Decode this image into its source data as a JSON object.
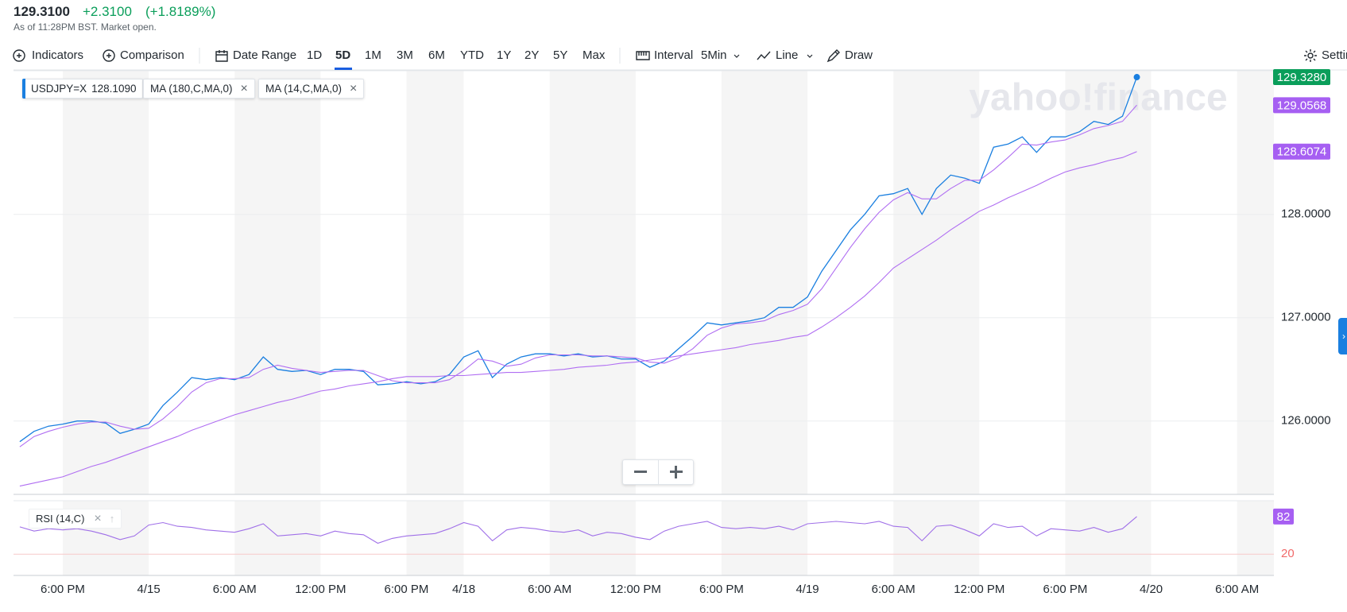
{
  "header": {
    "price": "129.3100",
    "change": "+2.3100",
    "change_pct": "(+1.8189%)",
    "status": "As of 11:28PM BST. Market open."
  },
  "toolbar": [
    {
      "label": "Indicators"
    },
    {
      "label": "Comparison"
    },
    {
      "label": "Date Range"
    },
    {
      "label": "1D"
    },
    {
      "label": "5D",
      "selected": true
    },
    {
      "label": "1M"
    },
    {
      "label": "3M"
    },
    {
      "label": "6M"
    },
    {
      "label": "YTD"
    },
    {
      "label": "1Y"
    },
    {
      "label": "2Y"
    },
    {
      "label": "5Y"
    },
    {
      "label": "Max"
    },
    {
      "label": "Interval"
    },
    {
      "label": "5Min"
    },
    {
      "label": "Line"
    },
    {
      "label": "Draw"
    },
    {
      "label": "Settings"
    }
  ],
  "chart_data": [
    {
      "type": "line",
      "watermark": "yahoo!finance",
      "legend_value": "128.1090",
      "x": [
        -3,
        -2,
        -1,
        0,
        1,
        2,
        3,
        4,
        5,
        6,
        7,
        8,
        9,
        10,
        11,
        12,
        13,
        14,
        15,
        16,
        17,
        18,
        19,
        20,
        21,
        22,
        23,
        24,
        25,
        26,
        27,
        28,
        29,
        30,
        31,
        32,
        33,
        34,
        35,
        36,
        37,
        38,
        39,
        40,
        41,
        42,
        43,
        44,
        45,
        46,
        47,
        48,
        49,
        50,
        51,
        52,
        53,
        54,
        55,
        56,
        57,
        58,
        59,
        60,
        61,
        62,
        63,
        64,
        65,
        66,
        67,
        68,
        69,
        70,
        71,
        72,
        73,
        74,
        75
      ],
      "xlim": [
        -3.44,
        84.57
      ],
      "ylim": [
        125.29,
        129.39
      ],
      "yticks": [
        {
          "value": 126,
          "label": "126.0000"
        },
        {
          "value": 127,
          "label": "127.0000"
        },
        {
          "value": 128,
          "label": "128.0000"
        }
      ],
      "grid": true,
      "series": [
        {
          "name": "USDJPY=X",
          "color": "#1a7fe0",
          "label_color": "#0a9e5a",
          "values": [
            125.8,
            125.9,
            125.95,
            125.97,
            126.0,
            126.0,
            125.98,
            125.88,
            125.92,
            125.97,
            126.15,
            126.28,
            126.42,
            126.4,
            126.42,
            126.4,
            126.45,
            126.62,
            126.5,
            126.48,
            126.49,
            126.45,
            126.5,
            126.5,
            126.48,
            126.35,
            126.36,
            126.38,
            126.36,
            126.38,
            126.45,
            126.62,
            126.68,
            126.42,
            126.55,
            126.62,
            126.65,
            126.65,
            126.63,
            126.65,
            126.62,
            126.63,
            126.6,
            126.6,
            126.52,
            126.58,
            126.7,
            126.82,
            126.95,
            126.93,
            126.95,
            126.97,
            127.0,
            127.1,
            127.1,
            127.2,
            127.45,
            127.65,
            127.85,
            128.0,
            128.18,
            128.2,
            128.25,
            128.0,
            128.25,
            128.38,
            128.35,
            128.3,
            128.65,
            128.68,
            128.75,
            128.6,
            128.75,
            128.75,
            128.8,
            128.9,
            128.87,
            128.95,
            129.328
          ],
          "value_labels": [
            null,
            null,
            null,
            null,
            null,
            null,
            null,
            null,
            null,
            null,
            null,
            null,
            null,
            null,
            null,
            null,
            null,
            null,
            null,
            null,
            null,
            null,
            null,
            null,
            null,
            null,
            null,
            null,
            null,
            null,
            null,
            null,
            null,
            null,
            null,
            null,
            null,
            null,
            null,
            null,
            null,
            null,
            null,
            null,
            null,
            null,
            null,
            null,
            null,
            null,
            null,
            null,
            null,
            null,
            null,
            null,
            null,
            null,
            null,
            null,
            null,
            null,
            null,
            null,
            null,
            null,
            null,
            null,
            null,
            null,
            null,
            null,
            null,
            null,
            null,
            null,
            null,
            null,
            "129.3280"
          ]
        },
        {
          "name": "MA (180,C,MA,0)",
          "color": "#b06ef2",
          "label_color": "#a65ff2",
          "values": [
            125.37,
            125.4,
            125.43,
            125.46,
            125.51,
            125.56,
            125.6,
            125.65,
            125.7,
            125.75,
            125.8,
            125.85,
            125.91,
            125.96,
            126.01,
            126.06,
            126.1,
            126.14,
            126.18,
            126.21,
            126.25,
            126.29,
            126.31,
            126.34,
            126.36,
            126.38,
            126.41,
            126.43,
            126.43,
            126.43,
            126.44,
            126.44,
            126.45,
            126.46,
            126.47,
            126.47,
            126.48,
            126.49,
            126.5,
            126.52,
            126.53,
            126.54,
            126.56,
            126.57,
            126.59,
            126.61,
            126.63,
            126.65,
            126.67,
            126.69,
            126.71,
            126.74,
            126.76,
            126.78,
            126.81,
            126.83,
            126.91,
            127.0,
            127.1,
            127.21,
            127.34,
            127.48,
            127.57,
            127.66,
            127.75,
            127.85,
            127.94,
            128.03,
            128.09,
            128.16,
            128.22,
            128.28,
            128.35,
            128.41,
            128.45,
            128.48,
            128.52,
            128.55,
            128.6074
          ],
          "value_labels": [
            null,
            null,
            null,
            null,
            null,
            null,
            null,
            null,
            null,
            null,
            null,
            null,
            null,
            null,
            null,
            null,
            null,
            null,
            null,
            null,
            null,
            null,
            null,
            null,
            null,
            null,
            null,
            null,
            null,
            null,
            null,
            null,
            null,
            null,
            null,
            null,
            null,
            null,
            null,
            null,
            null,
            null,
            null,
            null,
            null,
            null,
            null,
            null,
            null,
            null,
            null,
            null,
            null,
            null,
            null,
            null,
            null,
            null,
            null,
            null,
            null,
            null,
            null,
            null,
            null,
            null,
            null,
            null,
            null,
            null,
            null,
            null,
            null,
            null,
            null,
            null,
            null,
            null,
            "128.6074"
          ]
        },
        {
          "name": "MA (14,C,MA,0)",
          "color": "#b06ef2",
          "label_color": "#a65ff2",
          "values": [
            125.75,
            125.85,
            125.9,
            125.94,
            125.97,
            125.99,
            125.99,
            125.95,
            125.92,
            125.93,
            126.02,
            126.14,
            126.28,
            126.37,
            126.41,
            126.41,
            126.42,
            126.5,
            126.54,
            126.51,
            126.49,
            126.47,
            126.48,
            126.49,
            126.49,
            126.44,
            126.39,
            126.37,
            126.37,
            126.37,
            126.4,
            126.49,
            126.6,
            126.58,
            126.53,
            126.55,
            126.61,
            126.64,
            126.64,
            126.64,
            126.63,
            126.63,
            126.62,
            126.61,
            126.57,
            126.56,
            126.61,
            126.7,
            126.83,
            126.9,
            126.94,
            126.95,
            126.97,
            127.03,
            127.07,
            127.13,
            127.28,
            127.48,
            127.68,
            127.86,
            128.02,
            128.14,
            128.21,
            128.15,
            128.15,
            128.25,
            128.33,
            128.33,
            128.43,
            128.55,
            128.68,
            128.67,
            128.7,
            128.72,
            128.77,
            128.83,
            128.86,
            128.9,
            129.0568
          ],
          "value_labels": [
            null,
            null,
            null,
            null,
            null,
            null,
            null,
            null,
            null,
            null,
            null,
            null,
            null,
            null,
            null,
            null,
            null,
            null,
            null,
            null,
            null,
            null,
            null,
            null,
            null,
            null,
            null,
            null,
            null,
            null,
            null,
            null,
            null,
            null,
            null,
            null,
            null,
            null,
            null,
            null,
            null,
            null,
            null,
            null,
            null,
            null,
            null,
            null,
            null,
            null,
            null,
            null,
            null,
            null,
            null,
            null,
            null,
            null,
            null,
            null,
            null,
            null,
            null,
            null,
            null,
            null,
            null,
            null,
            null,
            null,
            null,
            null,
            null,
            null,
            null,
            null,
            null,
            null,
            "129.0568"
          ]
        }
      ]
    },
    {
      "type": "line",
      "x": [
        -3,
        -2,
        -1,
        0,
        1,
        2,
        3,
        4,
        5,
        6,
        7,
        8,
        9,
        10,
        11,
        12,
        13,
        14,
        15,
        16,
        17,
        18,
        19,
        20,
        21,
        22,
        23,
        24,
        25,
        26,
        27,
        28,
        29,
        30,
        31,
        32,
        33,
        34,
        35,
        36,
        37,
        38,
        39,
        40,
        41,
        42,
        43,
        44,
        45,
        46,
        47,
        48,
        49,
        50,
        51,
        52,
        53,
        54,
        55,
        56,
        57,
        58,
        59,
        60,
        61,
        62,
        63,
        64,
        65,
        66,
        67,
        68,
        69,
        70,
        71,
        72,
        73,
        74,
        75
      ],
      "xlim": [
        -3.44,
        84.57
      ],
      "xticks": [
        {
          "value": 0,
          "label": "6:00 PM"
        },
        {
          "value": 6,
          "label": "4/15"
        },
        {
          "value": 12,
          "label": "6:00 AM"
        },
        {
          "value": 18,
          "label": "12:00 PM"
        },
        {
          "value": 24,
          "label": "6:00 PM"
        },
        {
          "value": 28,
          "label": "4/18"
        },
        {
          "value": 34,
          "label": "6:00 AM"
        },
        {
          "value": 40,
          "label": "12:00 PM"
        },
        {
          "value": 46,
          "label": "6:00 PM"
        },
        {
          "value": 52,
          "label": "4/19"
        },
        {
          "value": 58,
          "label": "6:00 AM"
        },
        {
          "value": 64,
          "label": "12:00 PM"
        },
        {
          "value": 70,
          "label": "6:00 PM"
        },
        {
          "value": 76,
          "label": "4/20"
        },
        {
          "value": 82,
          "label": "6:00 AM"
        }
      ],
      "ylim": [
        -15,
        108
      ],
      "yticks": [
        20
      ],
      "series": [
        {
          "name": "RSI (14,C)",
          "color": "#a070e8",
          "label_color": "#a65ff2",
          "values": [
            65,
            58,
            62,
            60,
            62,
            58,
            52,
            44,
            50,
            68,
            72,
            66,
            64,
            60,
            58,
            56,
            62,
            70,
            50,
            52,
            54,
            50,
            58,
            54,
            52,
            38,
            46,
            50,
            52,
            54,
            62,
            72,
            66,
            42,
            60,
            64,
            62,
            58,
            56,
            60,
            50,
            56,
            54,
            48,
            44,
            58,
            66,
            70,
            74,
            64,
            62,
            64,
            62,
            66,
            60,
            70,
            72,
            74,
            72,
            70,
            74,
            66,
            64,
            42,
            66,
            68,
            60,
            50,
            70,
            64,
            66,
            50,
            62,
            60,
            58,
            64,
            56,
            62,
            82
          ]
        }
      ]
    }
  ]
}
